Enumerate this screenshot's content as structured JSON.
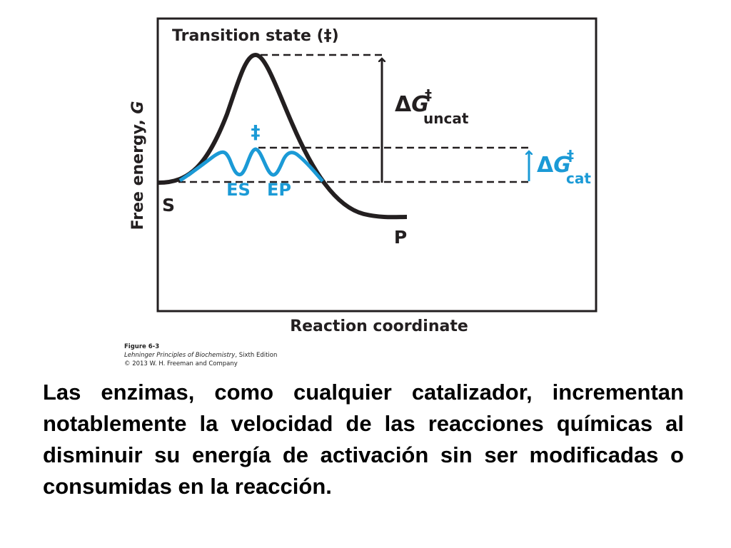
{
  "diagram": {
    "transition_state_label": "Transition state (‡)",
    "y_axis_label_main": "Free energy, ",
    "y_axis_label_var": "G",
    "x_axis_label": "Reaction coordinate",
    "substrate_label": "S",
    "product_label": "P",
    "es_label": "ES",
    "ep_label": "EP",
    "dagger_symbol": "‡",
    "delta_g_uncat": {
      "delta": "Δ",
      "g": "G",
      "sup": "‡",
      "sub": "uncat"
    },
    "delta_g_cat": {
      "delta": "Δ",
      "g": "G",
      "sup": "‡",
      "sub": "cat"
    },
    "colors": {
      "uncatalyzed_curve": "#231f20",
      "catalyzed_curve": "#1b9ad6",
      "frame": "#231f20"
    }
  },
  "caption": {
    "figure_number": "Figure 6-3",
    "book_title": "Lehninger Principles of Biochemistry",
    "edition": ", Sixth Edition",
    "copyright": "© 2013 W. H. Freeman and Company"
  },
  "body_text": "Las enzimas, como cualquier catalizador, incrementan notablemente la velocidad de las reacciones químicas al disminuir su energía de activación sin ser modificadas o consumidas en la reacción."
}
